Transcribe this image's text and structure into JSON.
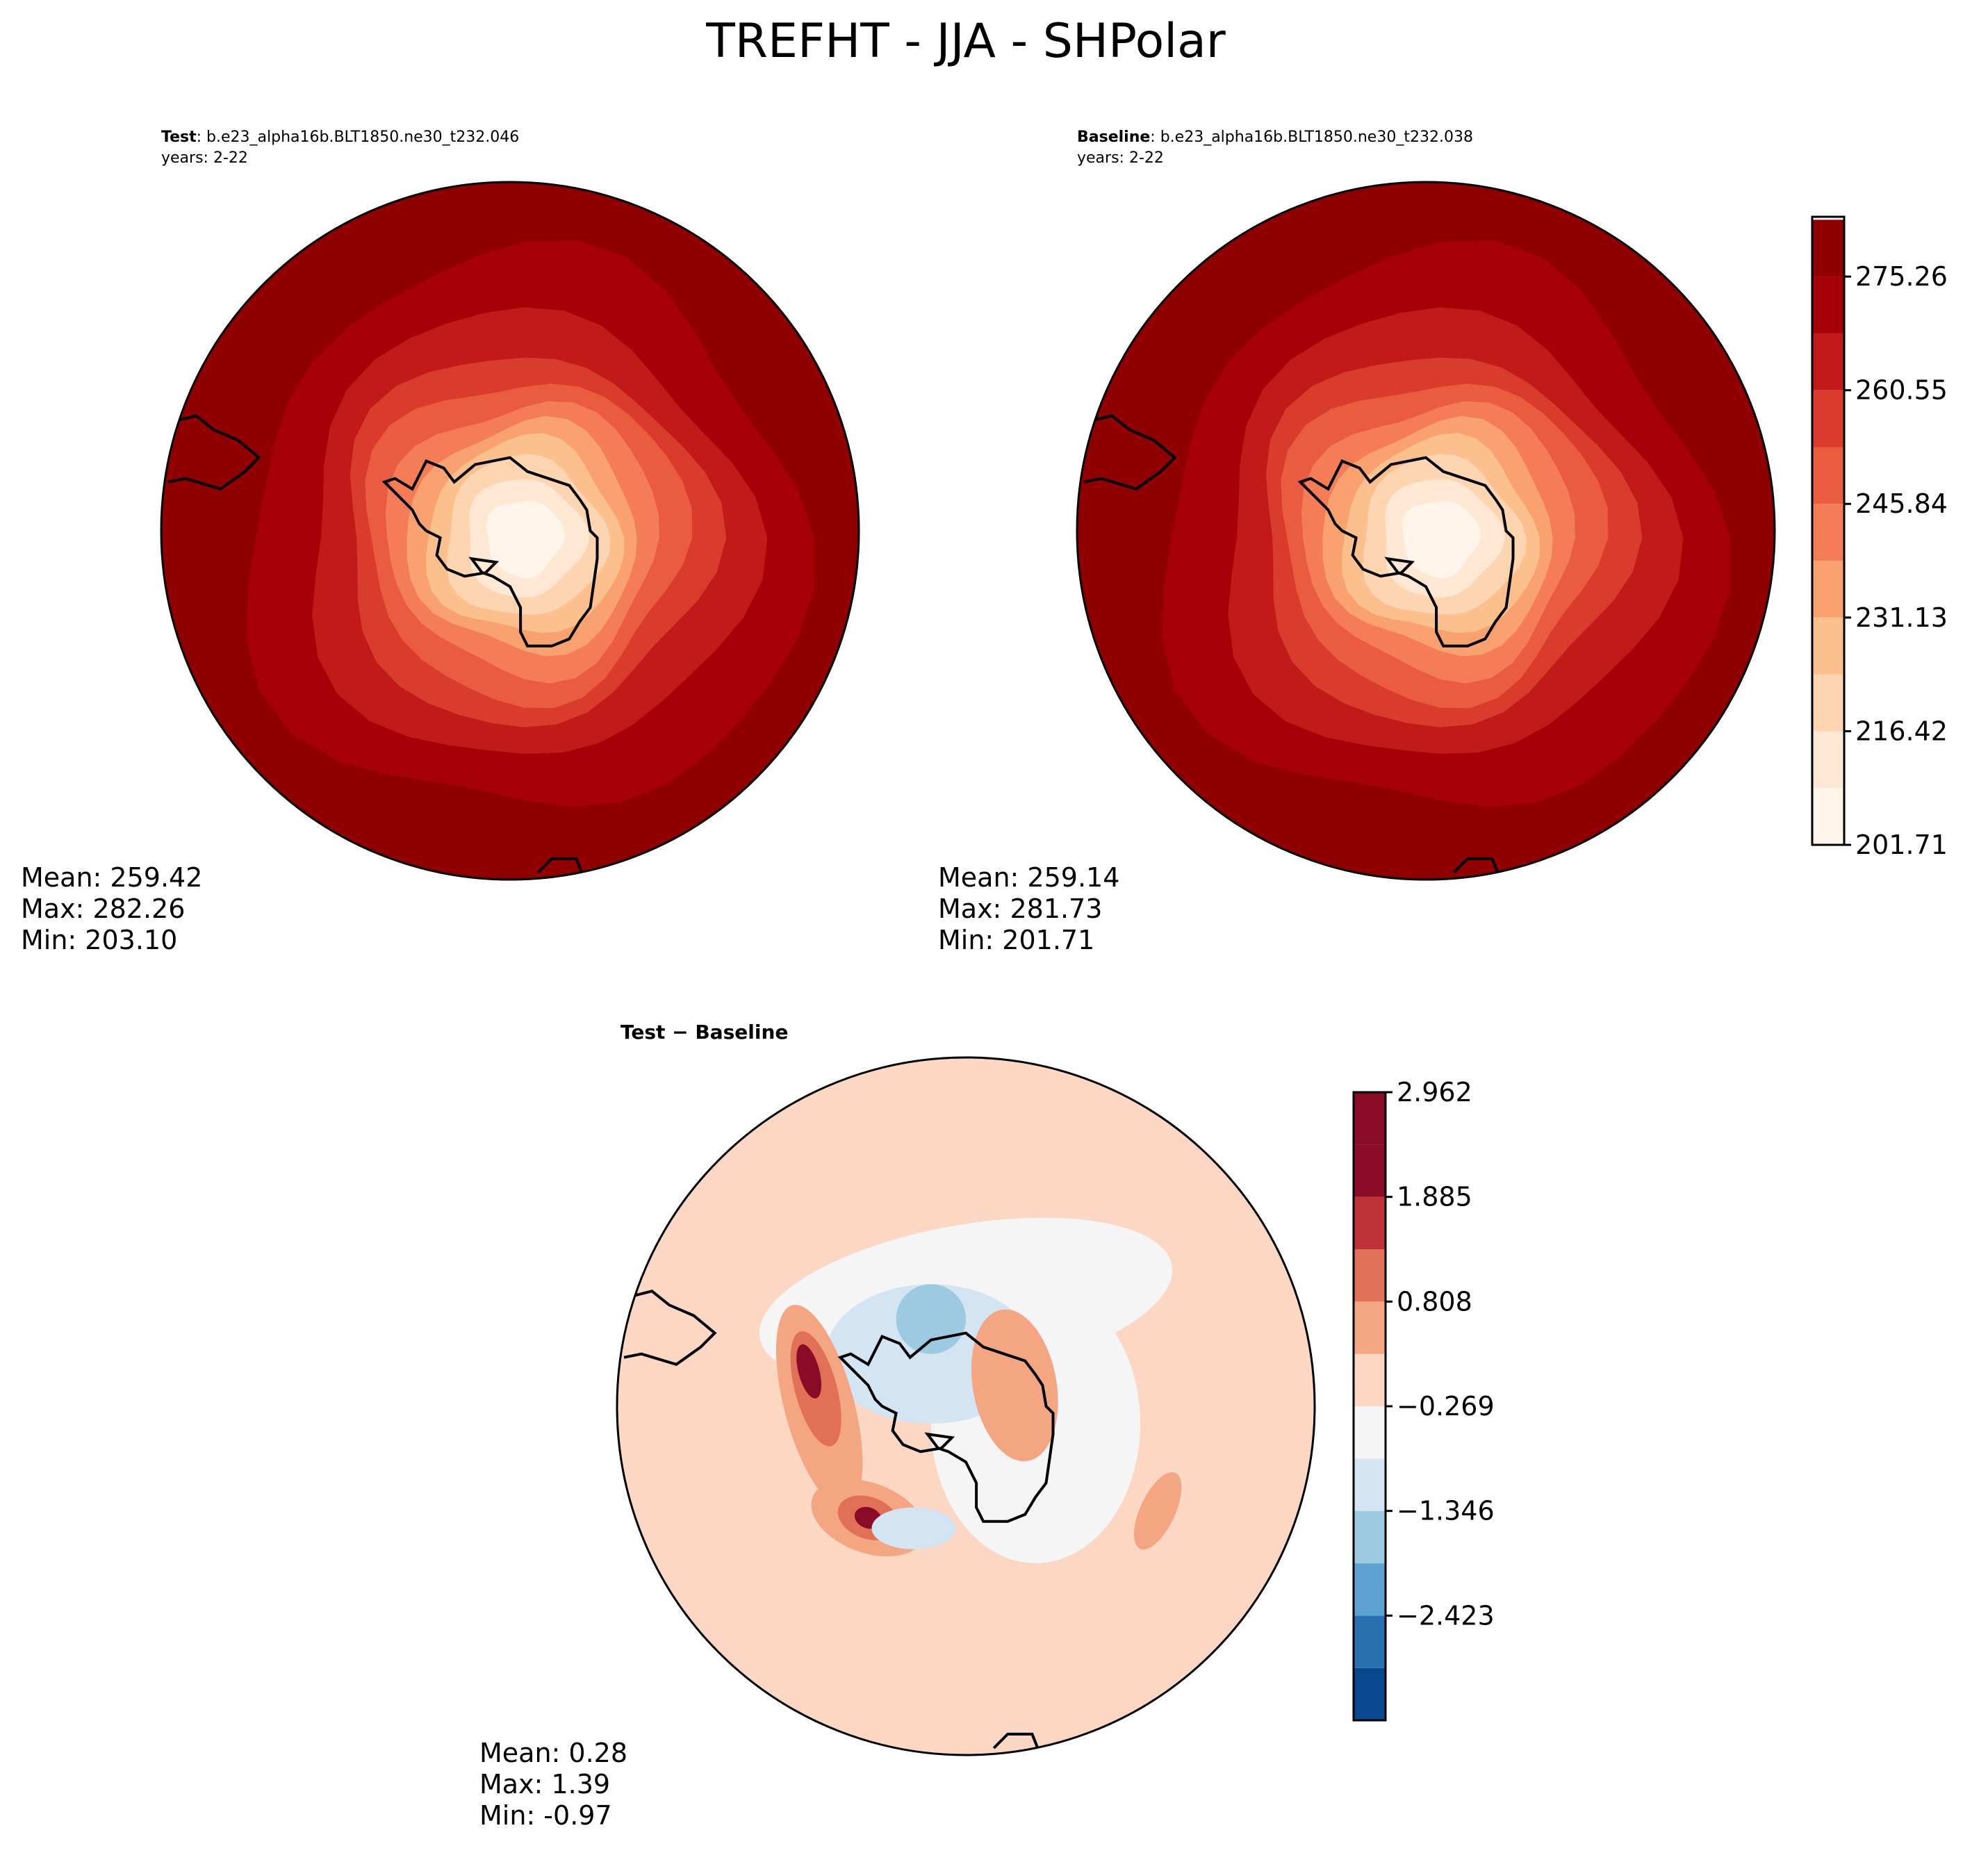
{
  "figure": {
    "title": "TREFHT - JJA - SHPolar"
  },
  "panels": {
    "test": {
      "label": "Test",
      "case": ": b.e23_alpha16b.BLT1850.ne30_t232.046",
      "years": "years: 2-22",
      "mean": "Mean: 259.42",
      "max": "Max: 282.26",
      "min": "Min: 203.10"
    },
    "baseline": {
      "label": "Baseline",
      "case": ": b.e23_alpha16b.BLT1850.ne30_t232.038",
      "years": "years: 2-22",
      "mean": "Mean: 259.14",
      "max": "Max: 281.73",
      "min": "Min: 201.71"
    },
    "diff": {
      "title": "Test − Baseline",
      "mean": "Mean:  0.28",
      "max": "Max:  1.39",
      "min": "Min: -0.97"
    }
  },
  "colors": {
    "abs_levels": [
      "#fff5eb",
      "#fee6ce",
      "#fdd0a2",
      "#fdae6b",
      "#fd8d3c",
      "#f16913",
      "#e34a33",
      "#d7301f",
      "#b30000",
      "#8b0000"
    ],
    "abs_cmap": [
      "#fff5eb",
      "#fee8d3",
      "#fdd5b1",
      "#fcbf8e",
      "#f9a26f",
      "#f47d57",
      "#ea5c40",
      "#d93b2c",
      "#c21a18",
      "#a60008",
      "#900000"
    ],
    "diff_cmap": [
      "#08488e",
      "#2a71b2",
      "#5ba3d0",
      "#9ccae1",
      "#d3e4f3",
      "#f5f5f5",
      "#fbd7c4",
      "#f4a683",
      "#e07058",
      "#bf3338",
      "#8a0b25"
    ]
  },
  "chart_data": [
    {
      "type": "heatmap",
      "name": "test",
      "title": "Test",
      "colorbar": null
    },
    {
      "type": "heatmap",
      "name": "baseline",
      "title": "Baseline",
      "colorbar": {
        "range": [
          201.71,
          283.0
        ],
        "levels": [
          201.71,
          209.06,
          216.42,
          223.77,
          231.13,
          238.48,
          245.84,
          253.19,
          260.55,
          267.9,
          275.26,
          282.61
        ],
        "tick_values": [
          201.71,
          216.42,
          231.13,
          245.84,
          260.55,
          275.26
        ],
        "tick_labels": [
          "201.71",
          "216.42",
          "231.13",
          "245.84",
          "260.55",
          "275.26"
        ]
      }
    },
    {
      "type": "heatmap",
      "name": "diff",
      "title": "Test − Baseline",
      "colorbar": {
        "range": [
          -3.5,
          2.962
        ],
        "levels": [
          -3.5,
          -2.962,
          -2.423,
          -1.885,
          -1.346,
          -0.808,
          -0.269,
          0.269,
          0.808,
          1.346,
          1.885,
          2.423,
          2.962
        ],
        "tick_values": [
          -2.423,
          -1.346,
          -0.269,
          0.808,
          1.885,
          2.962
        ],
        "tick_labels": [
          "−2.423",
          "−1.346",
          "−0.269",
          "0.808",
          "1.885",
          "2.962"
        ]
      }
    }
  ]
}
